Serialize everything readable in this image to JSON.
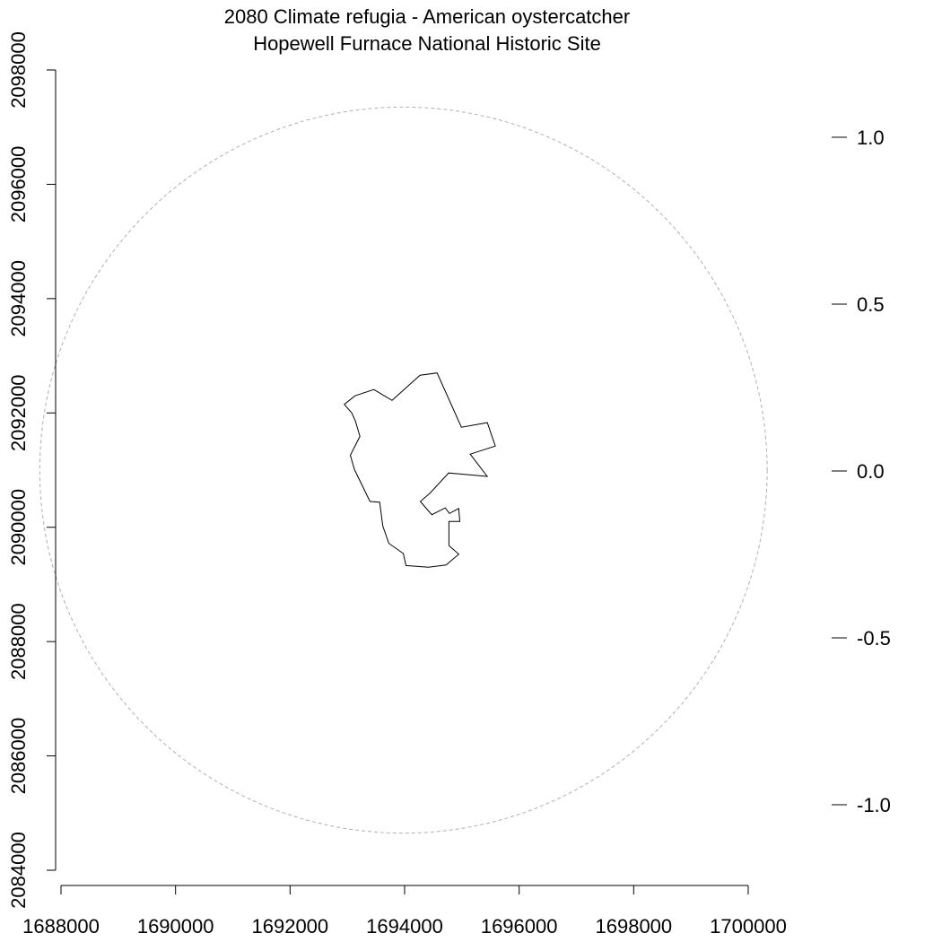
{
  "title": {
    "line1": "2080 Climate refugia - American oystercatcher",
    "line2": "Hopewell Furnace National Historic Site"
  },
  "chart_data": {
    "type": "map",
    "x_axis": {
      "range": [
        1688000,
        1700000
      ],
      "ticks": [
        1688000,
        1690000,
        1692000,
        1694000,
        1696000,
        1698000,
        1700000
      ],
      "tick_labels": [
        "1688000",
        "1690000",
        "1692000",
        "1694000",
        "1696000",
        "1698000",
        "1700000"
      ]
    },
    "y_axis": {
      "range": [
        2084000,
        2098000
      ],
      "ticks": [
        2084000,
        2086000,
        2088000,
        2090000,
        2092000,
        2094000,
        2096000,
        2098000
      ],
      "tick_labels": [
        "2084000",
        "2086000",
        "2088000",
        "2090000",
        "2092000",
        "2094000",
        "2096000",
        "2098000"
      ]
    },
    "legend_scale": {
      "ticks": [
        1.0,
        0.5,
        0.0,
        -0.5,
        -1.0
      ],
      "tick_labels": [
        "1.0",
        "0.5",
        "0.0",
        "-0.5",
        "-1.0"
      ]
    },
    "buffer_circle": {
      "center": [
        1693980,
        2091000
      ],
      "radius": 6650,
      "style": "dashed",
      "color": "#b0b0b0"
    },
    "park_boundary": {
      "color": "#000000",
      "polygon": [
        [
          1693781,
          2092220
        ],
        [
          1694269,
          2092660
        ],
        [
          1694567,
          2092700
        ],
        [
          1694991,
          2091750
        ],
        [
          1695444,
          2091830
        ],
        [
          1695584,
          2091420
        ],
        [
          1695145,
          2091280
        ],
        [
          1695443,
          2090890
        ],
        [
          1694769,
          2090950
        ],
        [
          1694446,
          2090600
        ],
        [
          1694274,
          2090450
        ],
        [
          1694474,
          2090220
        ],
        [
          1694709,
          2090340
        ],
        [
          1694784,
          2090240
        ],
        [
          1694944,
          2090330
        ],
        [
          1694963,
          2090100
        ],
        [
          1694774,
          2090100
        ],
        [
          1694774,
          2089680
        ],
        [
          1694946,
          2089530
        ],
        [
          1694723,
          2089340
        ],
        [
          1694415,
          2089300
        ],
        [
          1694024,
          2089330
        ],
        [
          1693978,
          2089540
        ],
        [
          1693724,
          2089720
        ],
        [
          1693619,
          2090020
        ],
        [
          1693564,
          2090440
        ],
        [
          1693396,
          2090450
        ],
        [
          1693125,
          2091010
        ],
        [
          1693052,
          2091260
        ],
        [
          1693220,
          2091590
        ],
        [
          1693140,
          2091860
        ],
        [
          1693077,
          2092000
        ],
        [
          1692948,
          2092150
        ],
        [
          1693133,
          2092300
        ],
        [
          1693462,
          2092410
        ]
      ]
    }
  }
}
